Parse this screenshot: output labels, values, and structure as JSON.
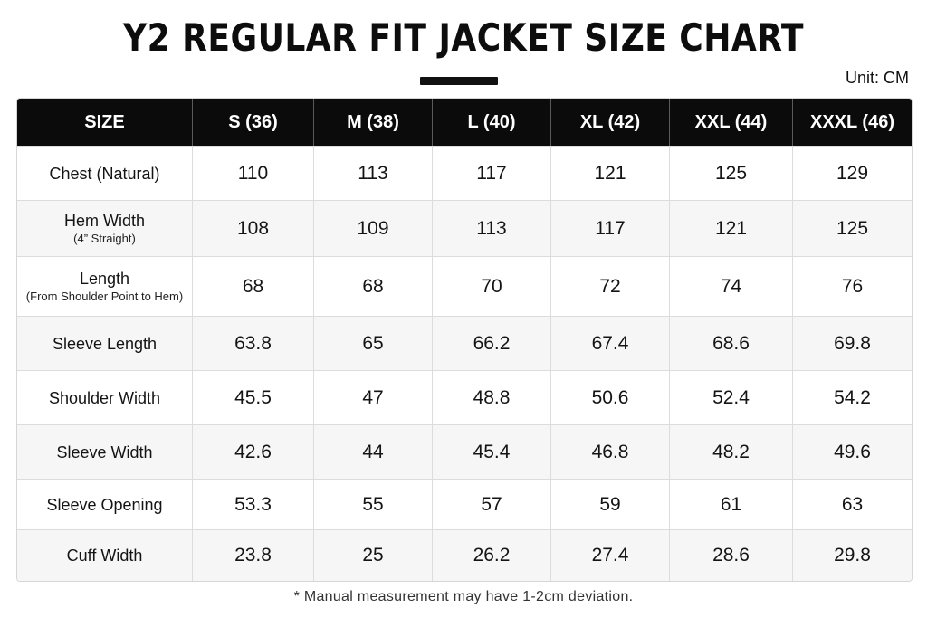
{
  "title": "Y2 REGULAR FIT JACKET SIZE CHART",
  "unit": "Unit: CM",
  "table": {
    "headers": [
      "SIZE",
      "S (36)",
      "M (38)",
      "L (40)",
      "XL (42)",
      "XXL (44)",
      "XXXL (46)"
    ],
    "rows": [
      {
        "label": "Chest (Natural)",
        "note": "",
        "values": [
          "110",
          "113",
          "117",
          "121",
          "125",
          "129"
        ]
      },
      {
        "label": "Hem Width",
        "note": "(4” Straight)",
        "values": [
          "108",
          "109",
          "113",
          "117",
          "121",
          "125"
        ]
      },
      {
        "label": "Length",
        "note": "(From Shoulder Point to Hem)",
        "values": [
          "68",
          "68",
          "70",
          "72",
          "74",
          "76"
        ]
      },
      {
        "label": "Sleeve Length",
        "note": "",
        "values": [
          "63.8",
          "65",
          "66.2",
          "67.4",
          "68.6",
          "69.8"
        ]
      },
      {
        "label": "Shoulder Width",
        "note": "",
        "values": [
          "45.5",
          "47",
          "48.8",
          "50.6",
          "52.4",
          "54.2"
        ]
      },
      {
        "label": "Sleeve Width",
        "note": "",
        "values": [
          "42.6",
          "44",
          "45.4",
          "46.8",
          "48.2",
          "49.6"
        ]
      },
      {
        "label": "Sleeve Opening",
        "note": "",
        "values": [
          "53.3",
          "55",
          "57",
          "59",
          "61",
          "63"
        ]
      },
      {
        "label": "Cuff Width",
        "note": "",
        "values": [
          "23.8",
          "25",
          "26.2",
          "27.4",
          "28.6",
          "29.8"
        ]
      }
    ]
  },
  "footnote": "* Manual measurement may have 1-2cm deviation."
}
